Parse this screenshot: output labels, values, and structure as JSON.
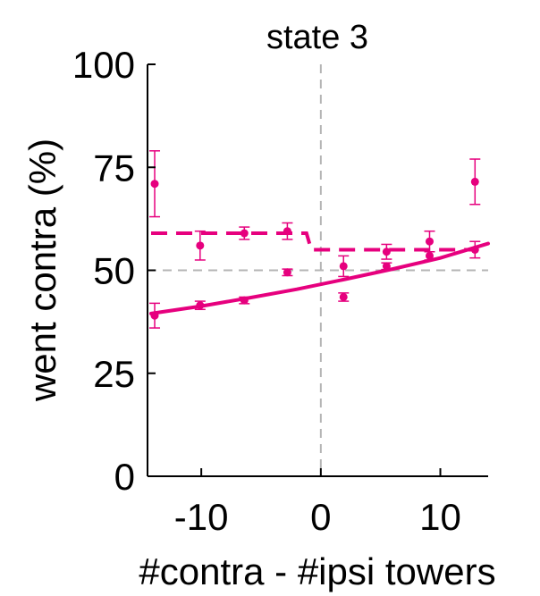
{
  "chart_data": {
    "type": "scatter",
    "title": "state 3",
    "xlabel": "#contra - #ipsi towers",
    "ylabel": "went contra (%)",
    "xlim": [
      -14.5,
      14
    ],
    "ylim": [
      0,
      100
    ],
    "xticks": [
      -10,
      0,
      10
    ],
    "xtick_labels": [
      "-10",
      "0",
      "10"
    ],
    "yticks": [
      0,
      25,
      50,
      75,
      100
    ],
    "ytick_labels": [
      "0",
      "25",
      "50",
      "75",
      "100"
    ],
    "grid": false,
    "reference_lines": {
      "x": 0,
      "y": 50
    },
    "color": "#e6007e",
    "points": [
      {
        "x": -13.9,
        "y": 71,
        "err": 8
      },
      {
        "x": -13.9,
        "y": 39,
        "err": 3
      },
      {
        "x": -10.1,
        "y": 56,
        "err": 3.5
      },
      {
        "x": -10.1,
        "y": 41.5,
        "err": 1
      },
      {
        "x": -6.4,
        "y": 59,
        "err": 1.5
      },
      {
        "x": -6.4,
        "y": 42.7,
        "err": 0.8
      },
      {
        "x": -2.8,
        "y": 59.5,
        "err": 2
      },
      {
        "x": -2.8,
        "y": 49.5,
        "err": 0.8
      },
      {
        "x": 1.9,
        "y": 51,
        "err": 2.5
      },
      {
        "x": 1.9,
        "y": 43.5,
        "err": 1
      },
      {
        "x": 5.5,
        "y": 54.5,
        "err": 1.8
      },
      {
        "x": 5.5,
        "y": 51,
        "err": 0.8
      },
      {
        "x": 9.1,
        "y": 57,
        "err": 2.5
      },
      {
        "x": 9.1,
        "y": 53.5,
        "err": 1
      },
      {
        "x": 12.9,
        "y": 71.5,
        "err": 5.5
      },
      {
        "x": 12.9,
        "y": 55,
        "err": 2
      }
    ],
    "step_fit": {
      "x": [
        -14.2,
        -1.2,
        -0.8,
        12.9
      ],
      "y": [
        59,
        59,
        55,
        55
      ],
      "style": "dashed"
    },
    "logistic_fit": {
      "x": [
        -14.2,
        -10,
        -6,
        -2,
        2,
        6,
        10,
        14
      ],
      "y": [
        39.5,
        41.3,
        43.3,
        45.4,
        47.8,
        50.3,
        53,
        56.5
      ],
      "style": "solid"
    }
  }
}
